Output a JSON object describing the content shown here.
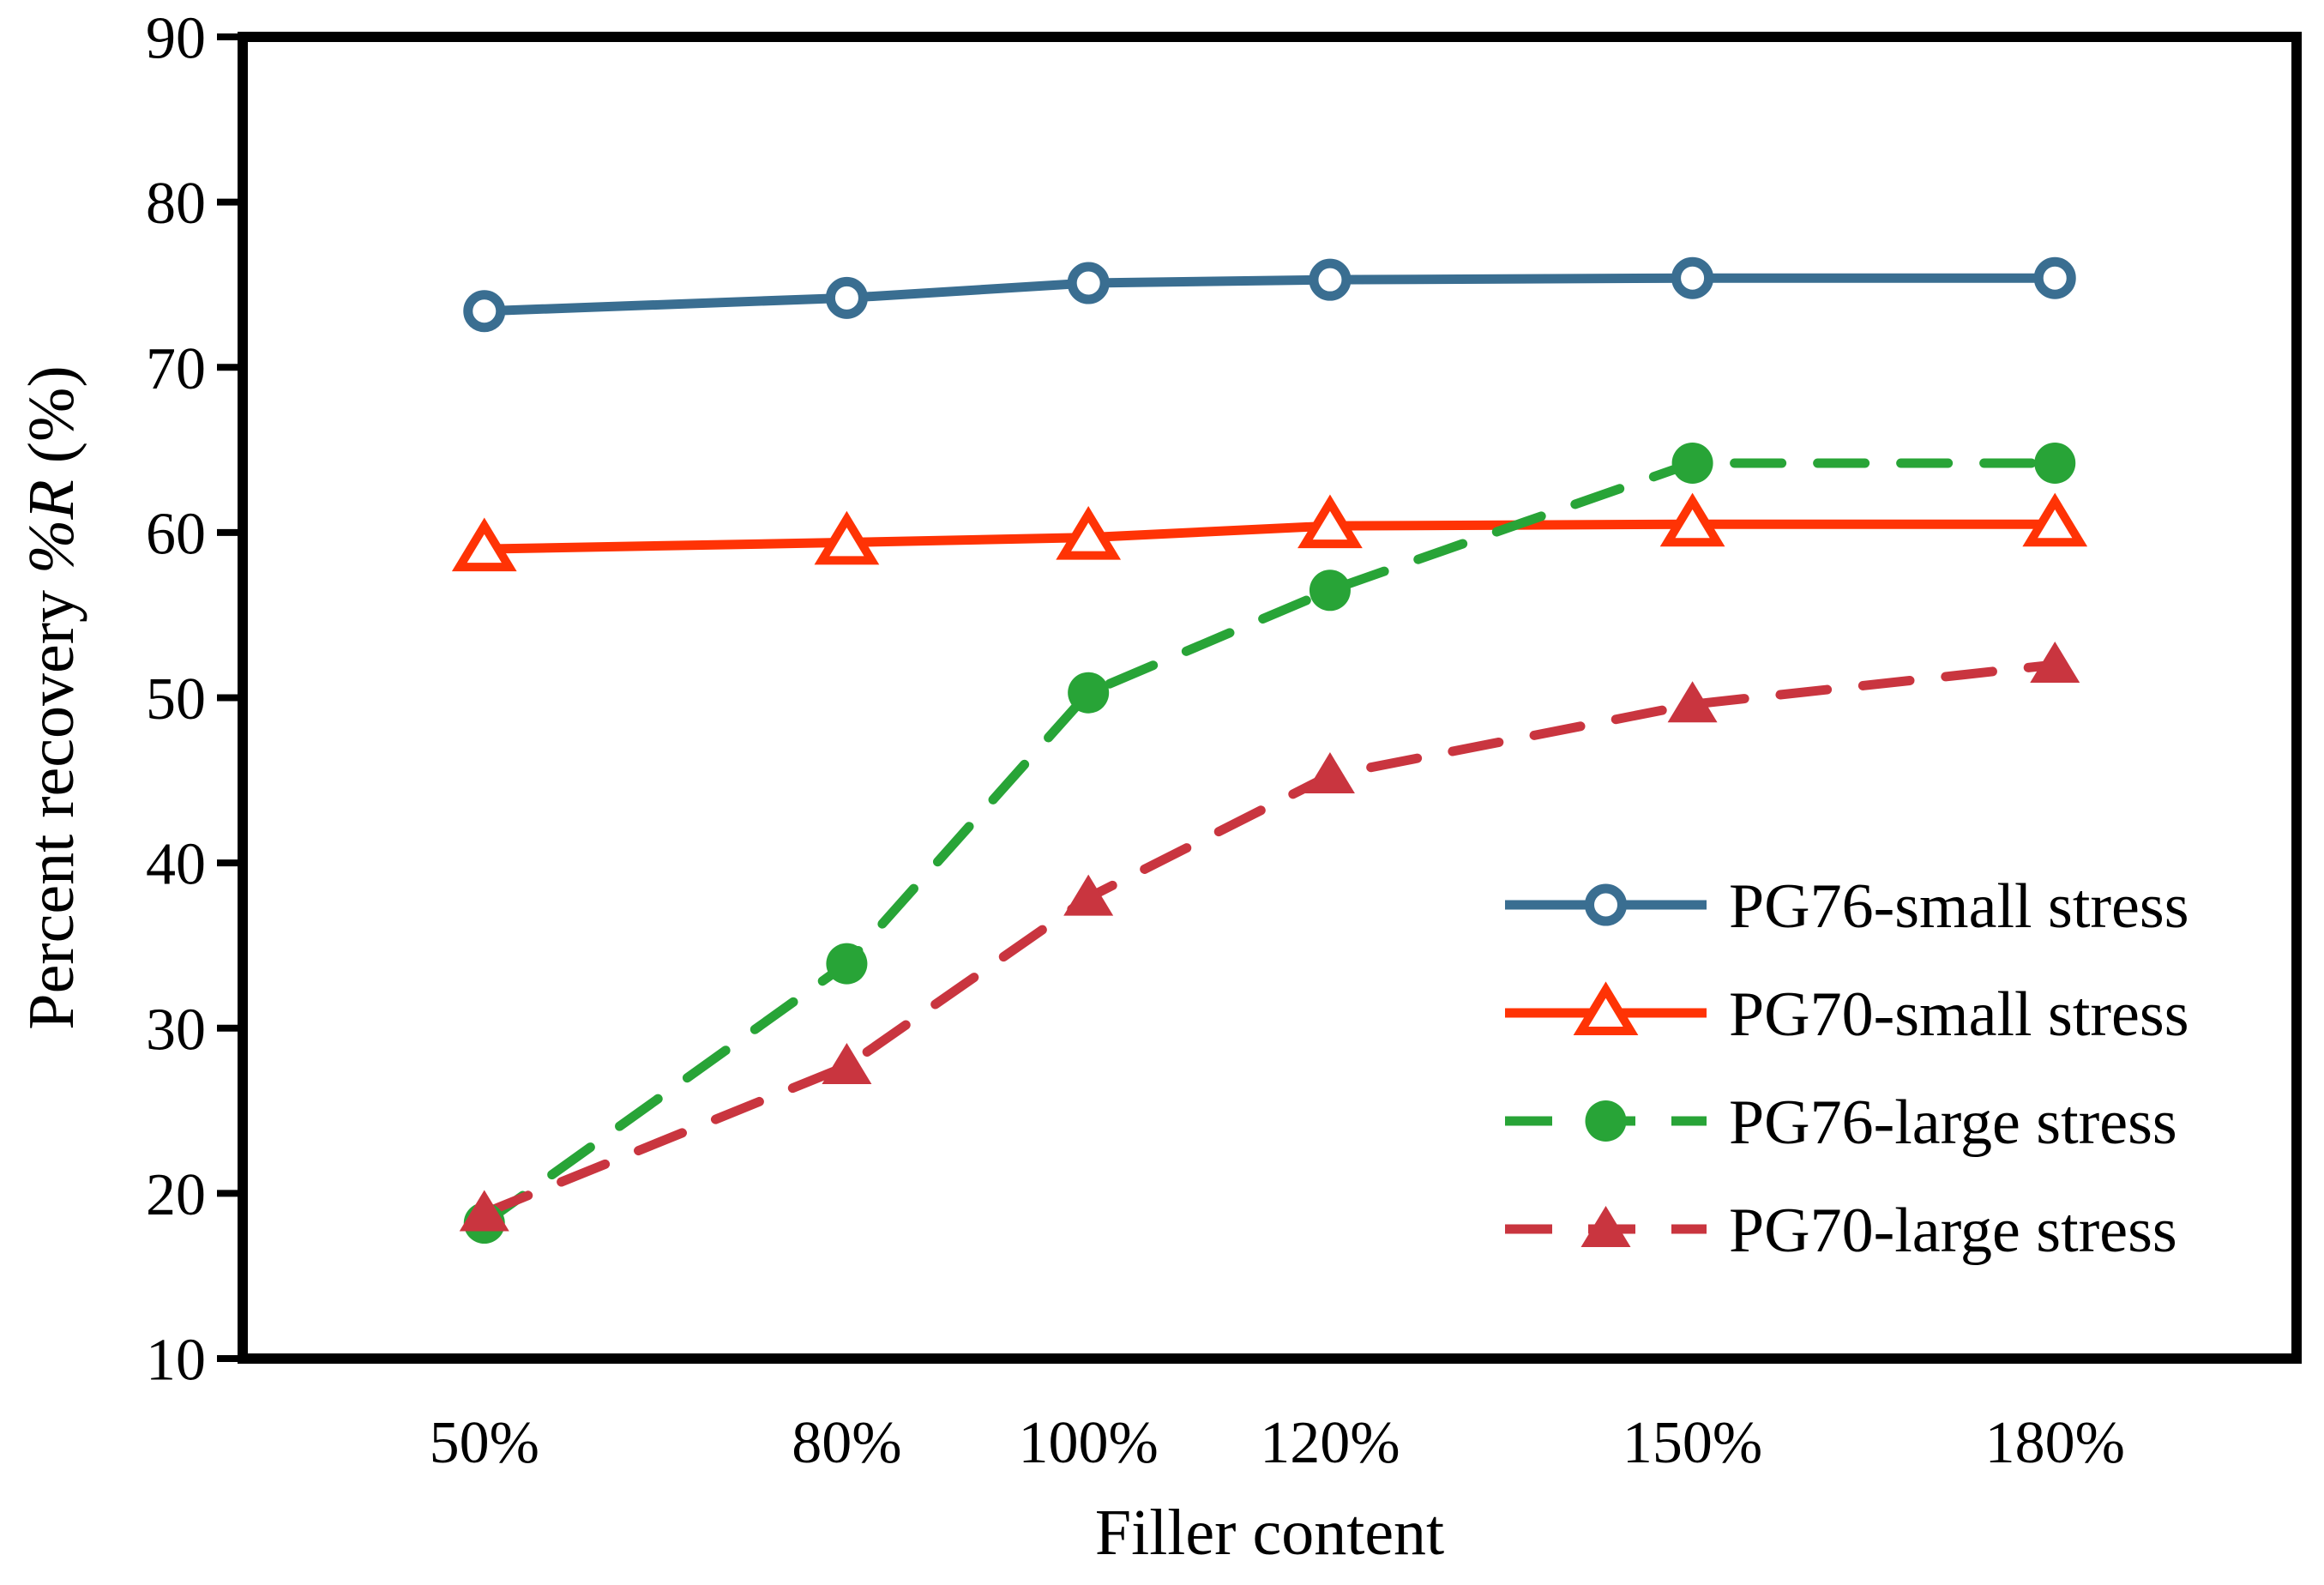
{
  "figure": {
    "background": "#ffffff",
    "text_color": "#000000"
  },
  "chart_data": {
    "type": "line",
    "title": "",
    "xlabel": "Filler content",
    "ylabel": "Percent recovery %R (%)",
    "ylabel_parts": {
      "prefix": "Percent recovery ",
      "italic": "%R",
      "suffix": " (%)"
    },
    "x_numeric": [
      50,
      80,
      100,
      120,
      150,
      180
    ],
    "xtick_labels": [
      "50%",
      "80%",
      "100%",
      "120%",
      "150%",
      "180%"
    ],
    "ytick_values": [
      90,
      80,
      70,
      60,
      50,
      40,
      30,
      20,
      10
    ],
    "ytick_labels": [
      "90",
      "80",
      "70",
      "60",
      "50",
      "40",
      "30",
      "20",
      "10"
    ],
    "xlim": [
      30,
      200
    ],
    "ylim": [
      10,
      90
    ],
    "grid": false,
    "legend_position": "lower-right-inside",
    "series": [
      {
        "name": "PG76-small stress",
        "color": "#3A6E91",
        "line": "solid",
        "marker": "circle-open",
        "values": [
          73.4,
          74.2,
          75.1,
          75.3,
          75.4,
          75.4
        ]
      },
      {
        "name": "PG70-small stress",
        "color": "#FF3305",
        "line": "solid",
        "marker": "triangle-open",
        "values": [
          59.0,
          59.4,
          59.7,
          60.4,
          60.5,
          60.5
        ]
      },
      {
        "name": "PG76-large stress",
        "color": "#28A437",
        "line": "dashed",
        "marker": "circle-filled",
        "values": [
          18.2,
          33.9,
          50.3,
          56.5,
          64.2,
          64.2
        ]
      },
      {
        "name": "PG70-large stress",
        "color": "#C9353F",
        "line": "dashed",
        "marker": "triangle-filled",
        "values": [
          18.8,
          27.7,
          37.9,
          45.3,
          49.6,
          52.0
        ]
      }
    ]
  }
}
